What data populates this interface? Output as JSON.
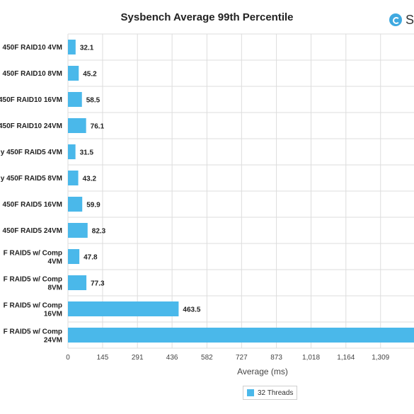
{
  "logo": {
    "text": "S"
  },
  "colors": {
    "bar": "#4ab8ea",
    "grid": "#dddddd",
    "text": "#222222"
  },
  "chart_data": {
    "type": "bar",
    "orientation": "horizontal",
    "title": "Sysbench Average 99th Percentile",
    "xlabel": "Average (ms)",
    "ylabel": "",
    "xlim": [
      0,
      1455
    ],
    "xticks": [
      0,
      145,
      291,
      436,
      582,
      727,
      873,
      1018,
      1164,
      1309
    ],
    "xtick_labels": [
      "0",
      "145",
      "291",
      "436",
      "582",
      "727",
      "873",
      "1,018",
      "1,164",
      "1,309"
    ],
    "grid": true,
    "legend_position": "bottom",
    "categories": [
      [
        "450F RAID10 4VM"
      ],
      [
        "450F RAID10 8VM"
      ],
      [
        "450F RAID10 16VM"
      ],
      [
        "450F RAID10 24VM"
      ],
      [
        "y 450F RAID5 4VM"
      ],
      [
        "y 450F RAID5 8VM"
      ],
      [
        "450F RAID5 16VM"
      ],
      [
        "450F RAID5 24VM"
      ],
      [
        "F RAID5 w/ Comp",
        "4VM"
      ],
      [
        "F RAID5 w/ Comp",
        "8VM"
      ],
      [
        "F RAID5 w/ Comp",
        "16VM"
      ],
      [
        "F RAID5 w/ Comp",
        "24VM"
      ]
    ],
    "series": [
      {
        "name": "32 Threads",
        "values": [
          32.1,
          45.2,
          58.5,
          76.1,
          31.5,
          43.2,
          59.9,
          82.3,
          47.8,
          77.3,
          463.5,
          1455
        ],
        "value_labels": [
          "32.1",
          "45.2",
          "58.5",
          "76.1",
          "31.5",
          "43.2",
          "59.9",
          "82.3",
          "47.8",
          "77.3",
          "463.5",
          ""
        ]
      }
    ]
  }
}
